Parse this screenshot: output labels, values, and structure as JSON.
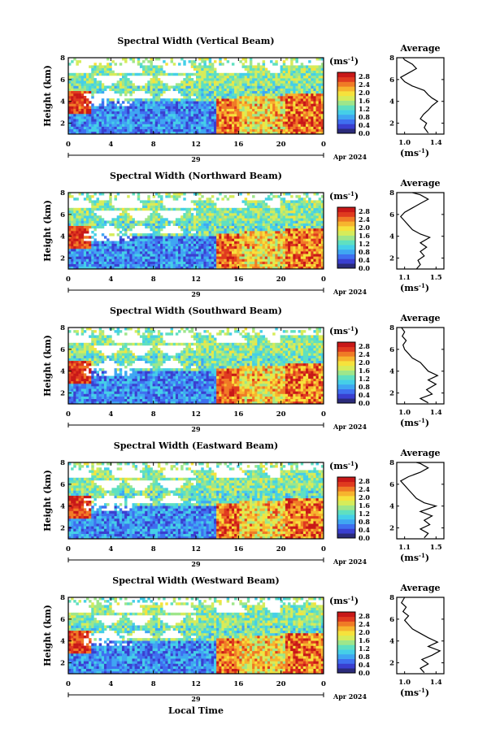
{
  "chart_data": {
    "type": "heatmap",
    "x_label": "Local Time",
    "y_label": "Height (km)",
    "date_label": "29",
    "month_label": "Apr 2024",
    "x_ticks": [
      "0",
      "4",
      "8",
      "12",
      "16",
      "20",
      "0"
    ],
    "y_ticks": [
      "2",
      "4",
      "6",
      "8"
    ],
    "colorbar": {
      "unit": "(ms",
      "unit_exp": "-1",
      "unit_close": ")",
      "ticks": [
        "0.0",
        "0.4",
        "0.8",
        "1.2",
        "1.6",
        "2.0",
        "2.4",
        "2.8"
      ],
      "range": [
        0.0,
        3.0
      ],
      "colors": [
        "#2b2b7a",
        "#3a3fd0",
        "#3f6ff0",
        "#3fa6f2",
        "#45cfe8",
        "#5fe0c0",
        "#9ee68a",
        "#d6ec5a",
        "#f6e23c",
        "#f7b42e",
        "#f07a26",
        "#e03a1f",
        "#c81818"
      ]
    },
    "avg_title": "Average",
    "avg_xlabel": "(ms",
    "avg_xlabel_exp": "-1",
    "avg_xlabel_close": ")",
    "avg_y_ticks": [
      "2",
      "4",
      "6",
      "8"
    ],
    "panels": [
      {
        "title": "Spectral Width (Vertical Beam)",
        "avg_x_ticks": [
          "1.0",
          "1.4"
        ],
        "avg_xlim": [
          0.9,
          1.5
        ],
        "avg_profile": [
          [
            1.3,
            1.1
          ],
          [
            1.25,
            1.6
          ],
          [
            1.28,
            2.0
          ],
          [
            1.2,
            2.4
          ],
          [
            1.24,
            2.8
          ],
          [
            1.3,
            3.2
          ],
          [
            1.35,
            3.6
          ],
          [
            1.42,
            4.0
          ],
          [
            1.35,
            4.3
          ],
          [
            1.3,
            4.6
          ],
          [
            1.25,
            5.0
          ],
          [
            1.1,
            5.4
          ],
          [
            1.0,
            5.8
          ],
          [
            0.95,
            6.2
          ],
          [
            1.05,
            6.6
          ],
          [
            1.15,
            7.0
          ],
          [
            1.1,
            7.4
          ],
          [
            1.0,
            7.8
          ],
          [
            0.98,
            8.0
          ]
        ]
      },
      {
        "title": "Spectral Width (Northward Beam)",
        "avg_x_ticks": [
          "1.1",
          "1.5"
        ],
        "avg_xlim": [
          1.0,
          1.6
        ],
        "avg_profile": [
          [
            1.25,
            1.0
          ],
          [
            1.3,
            1.4
          ],
          [
            1.27,
            1.8
          ],
          [
            1.35,
            2.2
          ],
          [
            1.3,
            2.6
          ],
          [
            1.38,
            3.0
          ],
          [
            1.3,
            3.4
          ],
          [
            1.42,
            3.9
          ],
          [
            1.3,
            4.2
          ],
          [
            1.2,
            4.6
          ],
          [
            1.15,
            5.0
          ],
          [
            1.1,
            5.4
          ],
          [
            1.05,
            5.8
          ],
          [
            1.1,
            6.2
          ],
          [
            1.2,
            6.6
          ],
          [
            1.3,
            7.0
          ],
          [
            1.4,
            7.4
          ],
          [
            1.3,
            7.8
          ],
          [
            1.2,
            8.0
          ]
        ]
      },
      {
        "title": "Spectral Width (Southward Beam)",
        "avg_x_ticks": [
          "1.0",
          "1.4"
        ],
        "avg_xlim": [
          0.9,
          1.5
        ],
        "avg_profile": [
          [
            1.3,
            1.1
          ],
          [
            1.2,
            1.5
          ],
          [
            1.35,
            1.9
          ],
          [
            1.28,
            2.3
          ],
          [
            1.4,
            2.8
          ],
          [
            1.3,
            3.2
          ],
          [
            1.42,
            3.6
          ],
          [
            1.3,
            4.0
          ],
          [
            1.25,
            4.4
          ],
          [
            1.2,
            4.8
          ],
          [
            1.1,
            5.2
          ],
          [
            1.05,
            5.6
          ],
          [
            1.0,
            6.0
          ],
          [
            0.98,
            6.4
          ],
          [
            1.02,
            6.8
          ],
          [
            0.97,
            7.2
          ],
          [
            1.0,
            7.6
          ],
          [
            0.96,
            8.0
          ]
        ]
      },
      {
        "title": "Spectral Width (Eastward Beam)",
        "avg_x_ticks": [
          "1.1",
          "1.5"
        ],
        "avg_xlim": [
          1.0,
          1.6
        ],
        "avg_profile": [
          [
            1.35,
            1.1
          ],
          [
            1.4,
            1.5
          ],
          [
            1.3,
            1.9
          ],
          [
            1.42,
            2.3
          ],
          [
            1.35,
            2.7
          ],
          [
            1.45,
            3.1
          ],
          [
            1.3,
            3.5
          ],
          [
            1.5,
            4.0
          ],
          [
            1.35,
            4.3
          ],
          [
            1.25,
            4.7
          ],
          [
            1.2,
            5.1
          ],
          [
            1.15,
            5.5
          ],
          [
            1.1,
            5.9
          ],
          [
            1.05,
            6.3
          ],
          [
            1.15,
            6.7
          ],
          [
            1.3,
            7.1
          ],
          [
            1.4,
            7.5
          ],
          [
            1.3,
            7.9
          ],
          [
            1.25,
            8.0
          ]
        ]
      },
      {
        "title": "Spectral Width (Westward Beam)",
        "avg_x_ticks": [
          "1.0",
          "1.4"
        ],
        "avg_xlim": [
          0.9,
          1.5
        ],
        "avg_profile": [
          [
            1.25,
            1.1
          ],
          [
            1.2,
            1.5
          ],
          [
            1.3,
            1.9
          ],
          [
            1.22,
            2.3
          ],
          [
            1.35,
            2.7
          ],
          [
            1.45,
            3.1
          ],
          [
            1.3,
            3.5
          ],
          [
            1.42,
            3.9
          ],
          [
            1.3,
            4.3
          ],
          [
            1.2,
            4.7
          ],
          [
            1.1,
            5.1
          ],
          [
            1.05,
            5.5
          ],
          [
            1.0,
            5.9
          ],
          [
            1.05,
            6.3
          ],
          [
            0.98,
            6.7
          ],
          [
            1.02,
            7.1
          ],
          [
            0.96,
            7.5
          ],
          [
            1.0,
            8.0
          ]
        ]
      }
    ]
  }
}
